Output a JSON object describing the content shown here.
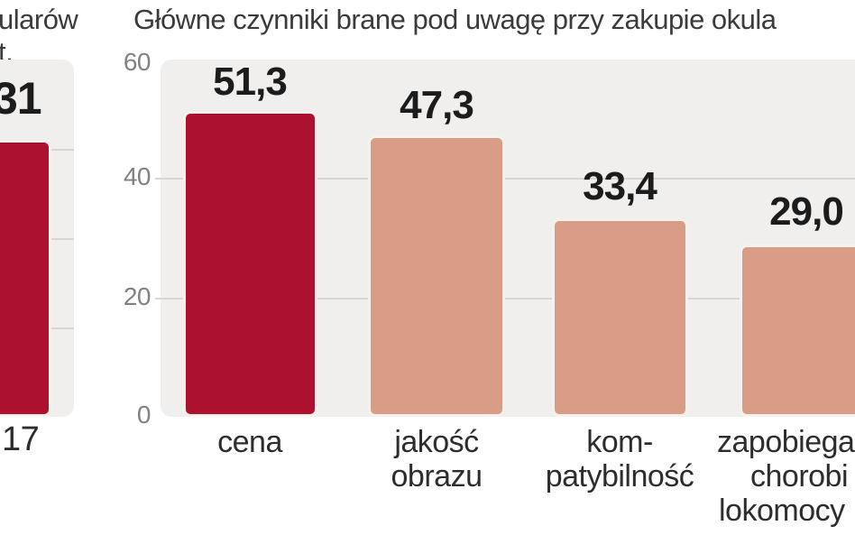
{
  "accent_colors": {
    "highlight_red": "#ac1130",
    "bar_salmon": "#d99c86",
    "bar_border_cream": "#f6f1ea",
    "plot_background": "#f0efed",
    "gridline": "#d9d6d2"
  },
  "left_chart": {
    "title_fragment_line1": "ularów",
    "title_fragment_line2": "t.",
    "value_label": "31",
    "x_label": "17"
  },
  "main_chart": {
    "title": "Główne czynniki brane pod uwagę przy zakupie okula",
    "y_ticks": [
      "60",
      "40",
      "20",
      "0"
    ],
    "bars": [
      {
        "value_label": "51,3",
        "category_lines": [
          "cena"
        ]
      },
      {
        "value_label": "47,3",
        "category_lines": [
          "jakość",
          "obrazu"
        ]
      },
      {
        "value_label": "33,4",
        "category_lines": [
          "kom-",
          "patybilność"
        ]
      },
      {
        "value_label": "29,0",
        "category_lines": [
          "zapobiega",
          "chorobi",
          "lokomocy"
        ]
      }
    ]
  },
  "chart_data": [
    {
      "type": "bar",
      "title": "",
      "categories": [
        "17"
      ],
      "values": [
        31
      ],
      "ylim": [
        0,
        40
      ],
      "grid": true,
      "bar_colors": [
        "#ac1130"
      ]
    },
    {
      "type": "bar",
      "title": "Główne czynniki brane pod uwagę przy zakupie okula",
      "categories": [
        "cena",
        "jakość obrazu",
        "kom-patybilność",
        "zapobiega chorobi lokomocy"
      ],
      "values": [
        51.3,
        47.3,
        33.4,
        29.0
      ],
      "value_labels": [
        "51,3",
        "47,3",
        "33,4",
        "29,0"
      ],
      "xlabel": "",
      "ylabel": "",
      "ylim": [
        0,
        60
      ],
      "yticks": [
        0,
        20,
        40,
        60
      ],
      "grid": true,
      "legend": "none",
      "bar_colors": [
        "#ac1130",
        "#d99c86",
        "#d99c86",
        "#d99c86"
      ]
    }
  ]
}
